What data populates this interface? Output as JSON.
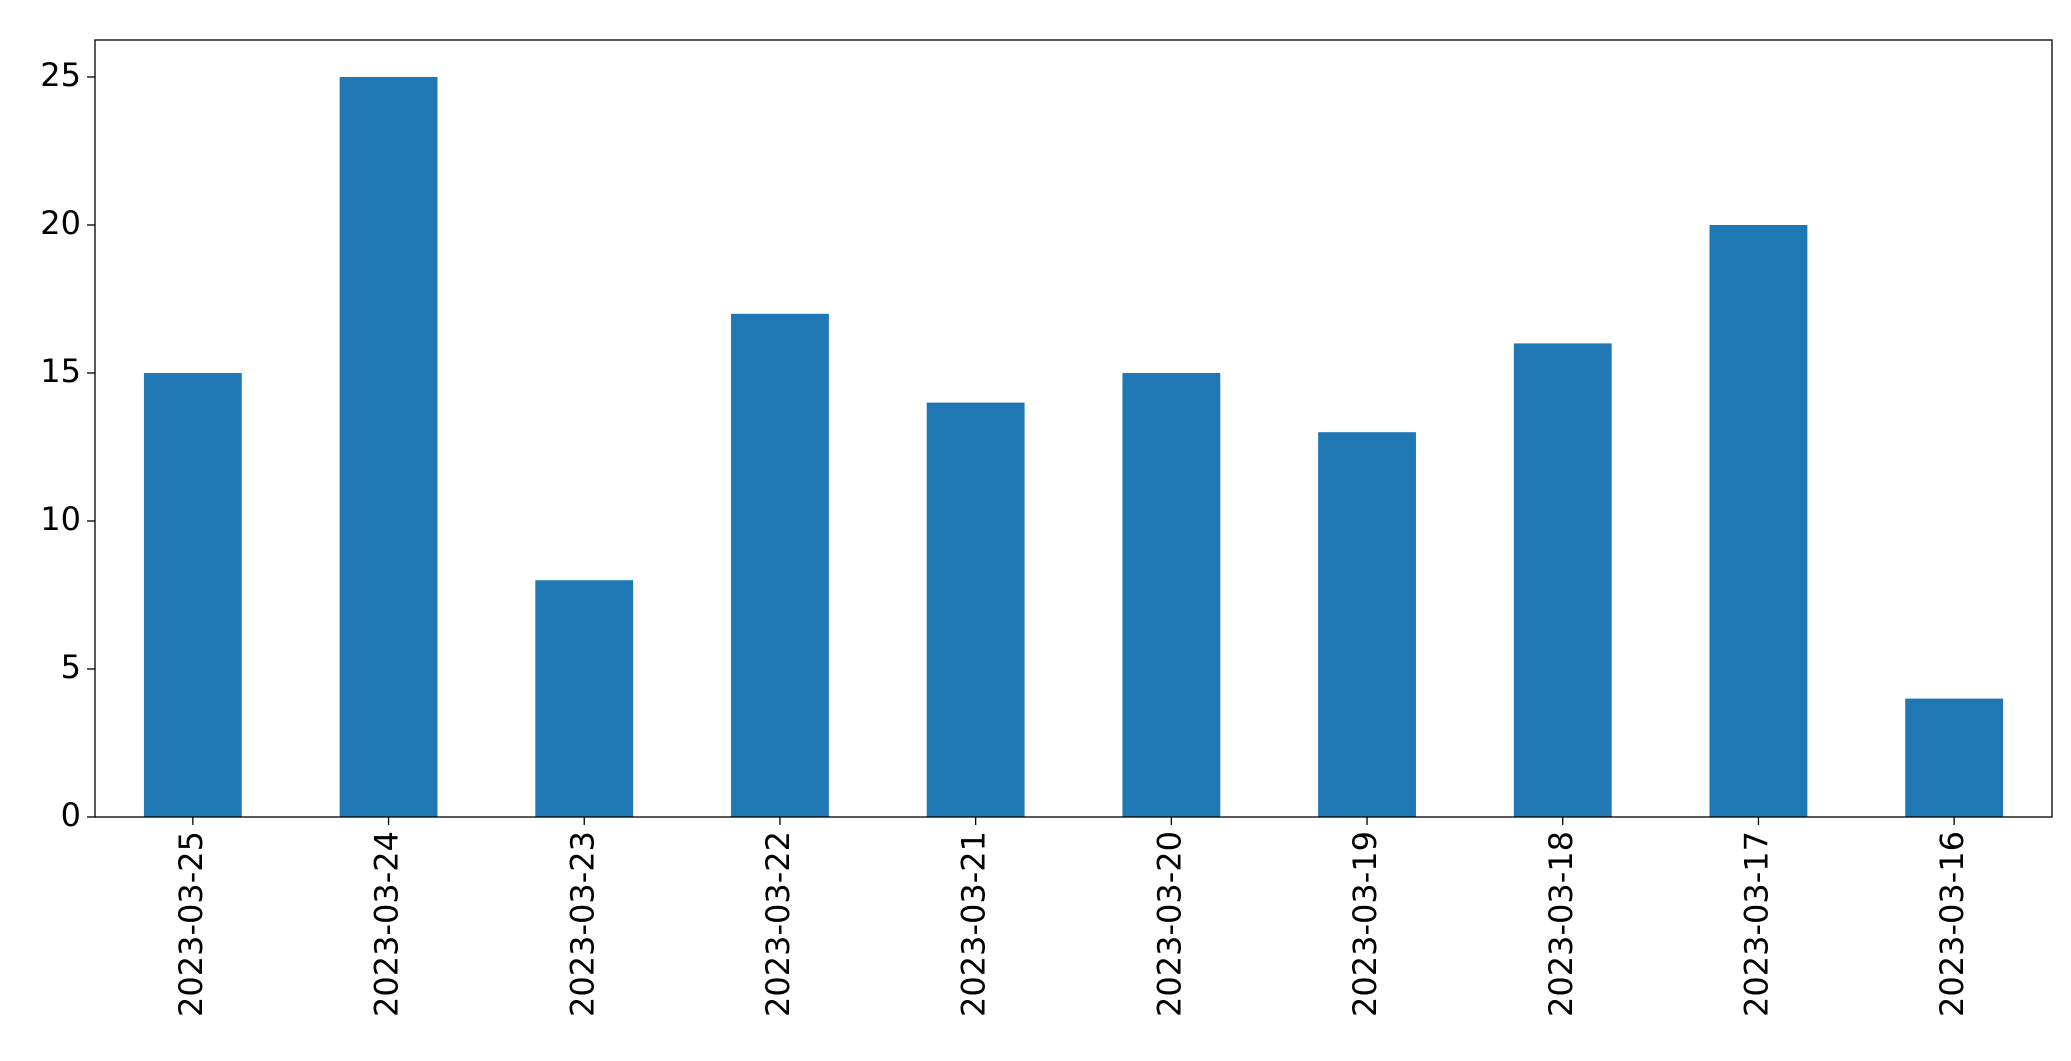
{
  "chart_data": {
    "type": "bar",
    "categories": [
      "2023-03-25",
      "2023-03-24",
      "2023-03-23",
      "2023-03-22",
      "2023-03-21",
      "2023-03-20",
      "2023-03-19",
      "2023-03-18",
      "2023-03-17",
      "2023-03-16"
    ],
    "values": [
      15,
      25,
      8,
      17,
      14,
      15,
      13,
      16,
      20,
      4
    ],
    "color": "#1f77b4",
    "ylim": [
      0,
      26.25
    ],
    "yticks": [
      0,
      5,
      10,
      15,
      20,
      25
    ],
    "grid": false
  }
}
